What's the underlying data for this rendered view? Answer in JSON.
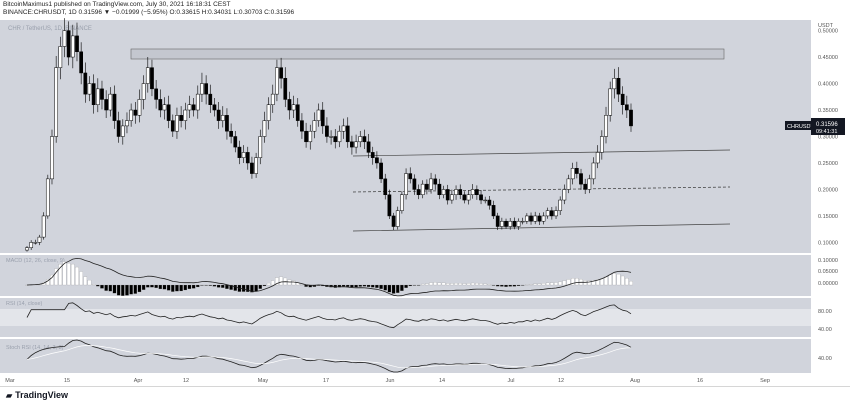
{
  "header": {
    "line1": "BitcoinMaximus1 published on TradingView.com, July 30, 2021 16:18:31 CEST",
    "line2": "BINANCE:CHRUSDT, 1D 0.31596 ▼ −0.01999 (−5.95%) O:0.33615 H:0.34031 L:0.30703 C:0.31596"
  },
  "panes": {
    "main_label": "CHR / TetherUS, 1D, BINANCE",
    "macd_label": "MACD (12, 26, close, 9)",
    "rsi_label": "RSI (14, close)",
    "stoch_label": "Stoch RSI (14, 14, 3, 3)"
  },
  "price_axis": {
    "unit": "USDT",
    "ticks": [
      "0.50000",
      "0.45000",
      "0.40000",
      "0.35000",
      "0.30000",
      "0.25000",
      "0.20000",
      "0.15000",
      "0.10000"
    ],
    "last_price_tag": "CHRUSDT",
    "last_price": "0.31596",
    "countdown": "09:41:31"
  },
  "indicator_axes": {
    "macd_ticks": [
      "0.10000",
      "0.05000",
      "0.00000"
    ],
    "rsi_ticks": [
      "80.00",
      "40.00"
    ],
    "stoch_ticks": [
      "40.00"
    ]
  },
  "time_axis": [
    "Mar",
    "15",
    "Apr",
    "12",
    "May",
    "17",
    "Jun",
    "14",
    "Jul",
    "12",
    "Aug",
    "16",
    "Sep"
  ],
  "footer": {
    "brand": "TradingView"
  },
  "colors": {
    "background": "#d1d4dc",
    "bull": "#ffffff",
    "bear": "#000000",
    "price_tag": "#131722"
  },
  "chart_data": {
    "type": "candlestick",
    "symbol": "BINANCE:CHRUSDT",
    "interval": "1D",
    "ylim": [
      0.08,
      0.52
    ],
    "resistance_zone": [
      0.455,
      0.465
    ],
    "channel": {
      "upper": [
        0.26,
        0.26
      ],
      "middle": [
        0.19,
        0.195
      ],
      "lower": [
        0.115,
        0.125
      ]
    },
    "ohlc_close_series": [
      0.09,
      0.1,
      0.1,
      0.11,
      0.15,
      0.22,
      0.3,
      0.43,
      0.47,
      0.5,
      0.45,
      0.49,
      0.46,
      0.42,
      0.38,
      0.4,
      0.36,
      0.39,
      0.37,
      0.35,
      0.38,
      0.33,
      0.3,
      0.32,
      0.33,
      0.35,
      0.34,
      0.37,
      0.4,
      0.43,
      0.39,
      0.37,
      0.35,
      0.36,
      0.33,
      0.31,
      0.34,
      0.33,
      0.35,
      0.36,
      0.35,
      0.38,
      0.4,
      0.38,
      0.36,
      0.35,
      0.33,
      0.34,
      0.31,
      0.3,
      0.28,
      0.26,
      0.27,
      0.25,
      0.23,
      0.26,
      0.3,
      0.33,
      0.36,
      0.38,
      0.43,
      0.41,
      0.37,
      0.35,
      0.36,
      0.33,
      0.31,
      0.29,
      0.31,
      0.33,
      0.35,
      0.32,
      0.3,
      0.3,
      0.29,
      0.31,
      0.32,
      0.29,
      0.28,
      0.29,
      0.3,
      0.29,
      0.27,
      0.26,
      0.25,
      0.22,
      0.19,
      0.15,
      0.13,
      0.16,
      0.19,
      0.23,
      0.22,
      0.2,
      0.19,
      0.21,
      0.2,
      0.22,
      0.21,
      0.19,
      0.2,
      0.18,
      0.19,
      0.2,
      0.19,
      0.18,
      0.19,
      0.2,
      0.19,
      0.18,
      0.18,
      0.17,
      0.15,
      0.13,
      0.14,
      0.13,
      0.14,
      0.13,
      0.14,
      0.14,
      0.15,
      0.14,
      0.15,
      0.14,
      0.15,
      0.16,
      0.15,
      0.16,
      0.18,
      0.2,
      0.22,
      0.24,
      0.23,
      0.21,
      0.2,
      0.22,
      0.25,
      0.27,
      0.3,
      0.34,
      0.39,
      0.41,
      0.38,
      0.36,
      0.35,
      0.32
    ]
  }
}
